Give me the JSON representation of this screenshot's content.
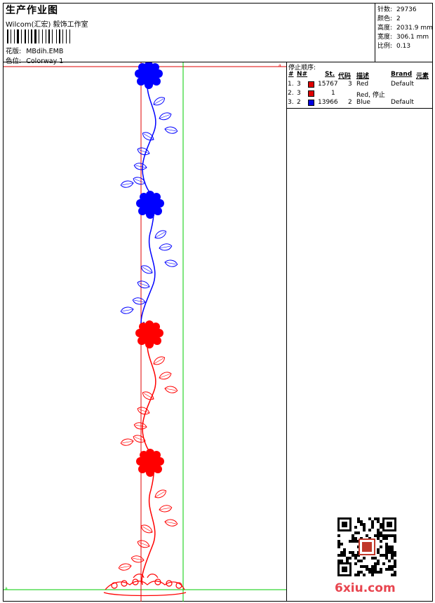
{
  "header": {
    "title": "生产作业图",
    "company": "Wilcom(汇宏) 毅饰工作室",
    "design_label": "花版:",
    "design_value": "MBdih.EMB",
    "colorway_label": "色位:",
    "colorway_value": "Colorway 1"
  },
  "stats": [
    {
      "label": "针数:",
      "value": "29736"
    },
    {
      "label": "颜色:",
      "value": "2"
    },
    {
      "label": "高度:",
      "value": "2031.9 mm"
    },
    {
      "label": "宽度:",
      "value": "306.1 mm"
    },
    {
      "label": "比例:",
      "value": "0.13"
    }
  ],
  "stop_sequence": {
    "title": "停止顺序:",
    "headers": {
      "num": "#",
      "needle": "N#",
      "stitches": "St.",
      "code": "代码",
      "desc": "描述",
      "brand": "Brand",
      "element": "元素"
    },
    "rows": [
      {
        "num": "1.",
        "needle": "3",
        "color": "#e00000",
        "stitches": "15767",
        "code": "3",
        "desc": "Red",
        "brand": "Default"
      },
      {
        "num": "2.",
        "needle": "3",
        "color": "#e00000",
        "stitches": "1",
        "code": "",
        "desc": "Red, 停止",
        "brand": ""
      },
      {
        "num": "3.",
        "needle": "2",
        "color": "#0000e0",
        "stitches": "13966",
        "code": "2",
        "desc": "Blue",
        "brand": "Default"
      }
    ]
  },
  "watermark": "6xiu.com",
  "colors": {
    "red": "#ff0000",
    "blue": "#0000ff",
    "guide_red": "#e00000",
    "guide_green": "#00cc00"
  }
}
